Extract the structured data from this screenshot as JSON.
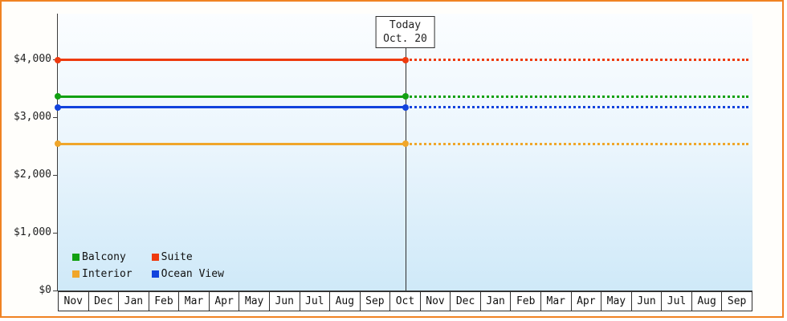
{
  "chart_data": {
    "type": "line",
    "title": "",
    "x_categories": [
      "Nov",
      "Dec",
      "Jan",
      "Feb",
      "Mar",
      "Apr",
      "May",
      "Jun",
      "Jul",
      "Aug",
      "Sep",
      "Oct",
      "Nov",
      "Dec",
      "Jan",
      "Feb",
      "Mar",
      "Apr",
      "May",
      "Jun",
      "Jul",
      "Aug",
      "Sep"
    ],
    "y_ticks": [
      {
        "label": "$0",
        "value": 0
      },
      {
        "label": "$1,000",
        "value": 1000
      },
      {
        "label": "$2,000",
        "value": 2000
      },
      {
        "label": "$3,000",
        "value": 3000
      },
      {
        "label": "$4,000",
        "value": 4000
      }
    ],
    "ylim": [
      0,
      4800
    ],
    "grid": false,
    "legend_position": "bottom-left-inside",
    "series": [
      {
        "name": "Balcony",
        "color": "#12a012",
        "value": 3360
      },
      {
        "name": "Suite",
        "color": "#ee3a0e",
        "value": 3990
      },
      {
        "name": "Interior",
        "color": "#f0a62a",
        "value": 2540
      },
      {
        "name": "Ocean View",
        "color": "#1243dd",
        "value": 3170
      }
    ],
    "today": {
      "title": "Today",
      "date": "Oct. 20",
      "month_index": 11,
      "note": "lines are solid before today, dotted after today"
    }
  },
  "colors": {
    "frame_border": "#f08222",
    "axis": "#3c3c3c",
    "plot_gradient_top": "#fbfdff",
    "plot_gradient_bottom": "#cfe9f8",
    "today_line": "#2e2e2e"
  }
}
